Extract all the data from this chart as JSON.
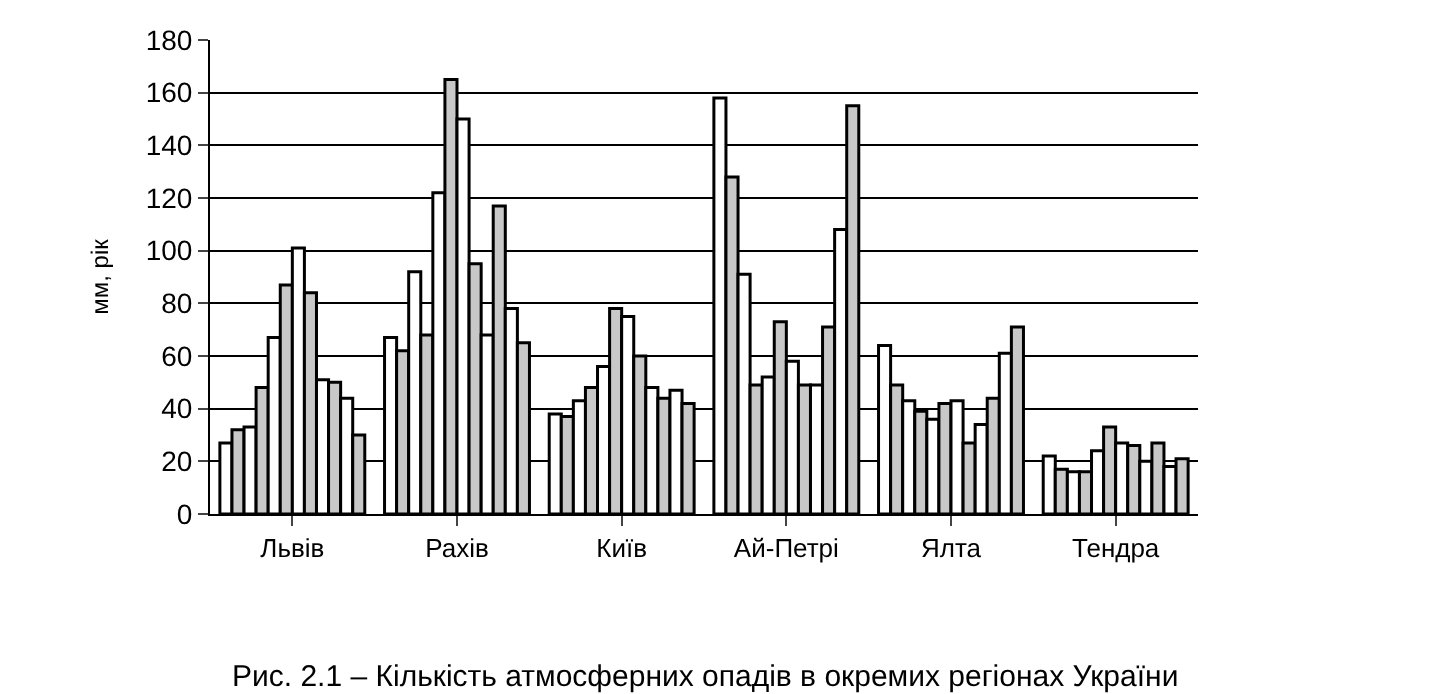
{
  "chart_data": {
    "type": "bar",
    "ylabel": "мм, рік",
    "categories": [
      "Львів",
      "Рахів",
      "Київ",
      "Ай-Петрі",
      "Ялта",
      "Тендра"
    ],
    "series": [
      {
        "color": "#ffffff",
        "values": [
          27,
          67,
          38,
          158,
          64,
          22
        ]
      },
      {
        "color": "#c8c8c8",
        "values": [
          32,
          62,
          37,
          128,
          49,
          17
        ]
      },
      {
        "color": "#ffffff",
        "values": [
          33,
          92,
          43,
          91,
          43,
          16
        ]
      },
      {
        "color": "#c8c8c8",
        "values": [
          48,
          68,
          48,
          49,
          39,
          16
        ]
      },
      {
        "color": "#ffffff",
        "values": [
          67,
          122,
          56,
          52,
          36,
          24
        ]
      },
      {
        "color": "#c8c8c8",
        "values": [
          87,
          165,
          78,
          73,
          42,
          33
        ]
      },
      {
        "color": "#ffffff",
        "values": [
          101,
          150,
          75,
          58,
          43,
          27
        ]
      },
      {
        "color": "#c8c8c8",
        "values": [
          84,
          95,
          60,
          49,
          27,
          26
        ]
      },
      {
        "color": "#ffffff",
        "values": [
          51,
          68,
          48,
          49,
          34,
          20
        ]
      },
      {
        "color": "#c8c8c8",
        "values": [
          50,
          117,
          44,
          71,
          44,
          27
        ]
      },
      {
        "color": "#ffffff",
        "values": [
          44,
          78,
          47,
          108,
          61,
          18
        ]
      },
      {
        "color": "#c8c8c8",
        "values": [
          30,
          65,
          42,
          155,
          71,
          21
        ]
      }
    ],
    "ylim": [
      0,
      180
    ],
    "yticks": [
      0,
      20,
      40,
      60,
      80,
      100,
      120,
      140,
      160,
      180
    ],
    "grid": "y",
    "legend": false,
    "annotations": [
      "Рис. 2.1 – Кількість атмосферних опадів в окремих регіонах України"
    ]
  }
}
